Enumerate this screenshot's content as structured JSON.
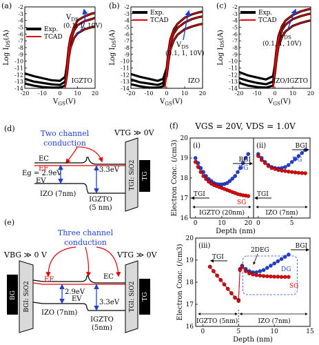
{
  "labels": {
    "a": "(a)",
    "b": "(b)",
    "c": "(c)",
    "d": "(d)",
    "e": "(e)",
    "f": "(f)"
  },
  "colors": {
    "exp": "#000000",
    "tcad": "#e00000",
    "blue": "#1f3fd8",
    "red": "#e00000",
    "gray": "#d9d9d9"
  },
  "chart_data": [
    {
      "type": "line",
      "panel": "a",
      "xlabel": "VGS(V)",
      "ylabel": "Log IDS(A)",
      "xlim": [
        -20,
        20
      ],
      "ylim": [
        -14,
        -2
      ],
      "xticks": [
        "-20",
        "-10",
        "0",
        "10",
        "20"
      ],
      "yticks": [
        "-2",
        "-3",
        "-4",
        "-5",
        "-6",
        "-7",
        "-8",
        "-9",
        "-10",
        "-11",
        "-12",
        "-13",
        "-14"
      ],
      "legend": [
        "Exp.",
        "TCAD"
      ],
      "annotation": {
        "line1": "VDS",
        "line2": "(0.1, 1, 10V)"
      },
      "device": "IGZTO",
      "series": [
        {
          "name": "Exp.",
          "vds": 10,
          "x": [
            -20,
            -15,
            -10,
            -5,
            0,
            3,
            4,
            5,
            6,
            8,
            10,
            14,
            18,
            20
          ],
          "y": [
            -11.8,
            -12.2,
            -12.5,
            -12.8,
            -12.9,
            -12.3,
            -10.5,
            -8,
            -6.5,
            -5,
            -4,
            -3.4,
            -3.0,
            -2.9
          ]
        },
        {
          "name": "Exp.",
          "vds": 1,
          "x": [
            -20,
            -15,
            -10,
            -5,
            0,
            3,
            4,
            5,
            6,
            8,
            10,
            14,
            18,
            20
          ],
          "y": [
            -12.6,
            -13,
            -13.2,
            -13.4,
            -13.5,
            -13,
            -11,
            -8.5,
            -7,
            -5.5,
            -4.7,
            -4.1,
            -3.8,
            -3.6
          ]
        },
        {
          "name": "Exp.",
          "vds": 0.1,
          "x": [
            -20,
            -15,
            -10,
            -5,
            0,
            3,
            4,
            5,
            6,
            8,
            10,
            14,
            18,
            20
          ],
          "y": [
            -13.3,
            -13.6,
            -13.8,
            -13.9,
            -13.9,
            -13.6,
            -12,
            -9.5,
            -8,
            -6.6,
            -5.9,
            -5.3,
            -5.0,
            -4.9
          ]
        },
        {
          "name": "TCAD",
          "vds": 10,
          "x": [
            3,
            4,
            5,
            6,
            8,
            10,
            14,
            18,
            20
          ],
          "y": [
            -13.8,
            -10.5,
            -8,
            -6.5,
            -5,
            -4,
            -3.4,
            -3.0,
            -2.9
          ]
        },
        {
          "name": "TCAD",
          "vds": 1,
          "x": [
            3,
            4,
            5,
            6,
            8,
            10,
            14,
            18,
            20
          ],
          "y": [
            -13.9,
            -11,
            -8.5,
            -7,
            -5.5,
            -4.7,
            -4.1,
            -3.8,
            -3.6
          ]
        },
        {
          "name": "TCAD",
          "vds": 0.1,
          "x": [
            3,
            4,
            5,
            6,
            8,
            10,
            14,
            18,
            20
          ],
          "y": [
            -14,
            -12,
            -9.5,
            -8,
            -6.6,
            -5.9,
            -5.3,
            -5.0,
            -4.9
          ]
        }
      ]
    },
    {
      "type": "line",
      "panel": "b",
      "xlabel": "VGS(V)",
      "ylabel": "Log IDS(A)",
      "xlim": [
        -20,
        20
      ],
      "ylim": [
        -14,
        -2
      ],
      "xticks": [
        "-20",
        "-10",
        "0",
        "10",
        "20"
      ],
      "yticks": [
        "-2",
        "-3",
        "-4",
        "-5",
        "-6",
        "-7",
        "-8",
        "-9",
        "-10",
        "-11",
        "-12",
        "-13",
        "-14"
      ],
      "legend": [
        "Exp.",
        "TCAD"
      ],
      "annotation": {
        "line1": "VDS",
        "line2": "(0.1, 1, 10V)"
      },
      "device": "IZO",
      "series": [
        {
          "name": "Exp.",
          "vds": 10,
          "x": [
            -20,
            -15,
            -10,
            -5,
            -2,
            0,
            1,
            2,
            4,
            6,
            10,
            14,
            18,
            20
          ],
          "y": [
            -11.9,
            -12.3,
            -12.6,
            -12.9,
            -12.6,
            -11,
            -8.5,
            -6.8,
            -5.3,
            -4.5,
            -3.6,
            -3.1,
            -2.8,
            -2.7
          ]
        },
        {
          "name": "Exp.",
          "vds": 1,
          "x": [
            -20,
            -15,
            -10,
            -5,
            -2,
            0,
            1,
            2,
            4,
            6,
            10,
            14,
            18,
            20
          ],
          "y": [
            -12.7,
            -13.1,
            -13.3,
            -13.5,
            -13.2,
            -11.5,
            -9,
            -7.3,
            -5.9,
            -5.1,
            -4.3,
            -3.8,
            -3.5,
            -3.4
          ]
        },
        {
          "name": "Exp.",
          "vds": 0.1,
          "x": [
            -20,
            -15,
            -10,
            -5,
            -2,
            0,
            1,
            2,
            4,
            6,
            10,
            14,
            18,
            20
          ],
          "y": [
            -13.4,
            -13.7,
            -13.9,
            -13.9,
            -13.7,
            -12.2,
            -10,
            -8.3,
            -6.9,
            -6.1,
            -5.3,
            -4.9,
            -4.6,
            -4.5
          ]
        },
        {
          "name": "TCAD",
          "vds": 10,
          "x": [
            -1,
            0,
            1,
            2,
            4,
            6,
            10,
            14,
            18,
            20
          ],
          "y": [
            -13.8,
            -11,
            -8.5,
            -6.8,
            -5.3,
            -4.5,
            -3.6,
            -3.1,
            -2.8,
            -2.7
          ]
        },
        {
          "name": "TCAD",
          "vds": 1,
          "x": [
            -1,
            0,
            1,
            2,
            4,
            6,
            10,
            14,
            18,
            20
          ],
          "y": [
            -13.9,
            -11.5,
            -9,
            -7.3,
            -5.9,
            -5.1,
            -4.3,
            -3.8,
            -3.5,
            -3.4
          ]
        },
        {
          "name": "TCAD",
          "vds": 0.1,
          "x": [
            -1,
            0,
            1,
            2,
            4,
            6,
            10,
            14,
            18,
            20
          ],
          "y": [
            -14,
            -12.2,
            -10,
            -8.3,
            -6.9,
            -6.1,
            -5.3,
            -4.9,
            -4.6,
            -4.5
          ]
        }
      ]
    },
    {
      "type": "line",
      "panel": "c",
      "xlabel": "VGS(V)",
      "ylabel": "Log IDS(A)",
      "xlim": [
        -20,
        20
      ],
      "ylim": [
        -14,
        -2
      ],
      "xticks": [
        "-20",
        "-10",
        "0",
        "10",
        "20"
      ],
      "yticks": [
        "-2",
        "-3",
        "-4",
        "-5",
        "-6",
        "-7",
        "-8",
        "-9",
        "-10",
        "-11",
        "-12",
        "-13",
        "-14"
      ],
      "legend": [
        "Exp.",
        "TCAD"
      ],
      "annotation": {
        "line1": "VDS",
        "line2": "(0.1, 1, 10V)"
      },
      "device": "IZO/IGZTO",
      "series": [
        {
          "name": "Exp.",
          "vds": 10,
          "x": [
            -20,
            -15,
            -10,
            -5,
            -1,
            0,
            1,
            2,
            4,
            6,
            10,
            14,
            18,
            20
          ],
          "y": [
            -11.6,
            -12.1,
            -12.4,
            -12.7,
            -12.2,
            -10.5,
            -8,
            -6.3,
            -4.8,
            -4,
            -3.2,
            -2.7,
            -2.4,
            -2.3
          ]
        },
        {
          "name": "Exp.",
          "vds": 1,
          "x": [
            -20,
            -15,
            -10,
            -5,
            -1,
            0,
            1,
            2,
            4,
            6,
            10,
            14,
            18,
            20
          ],
          "y": [
            -12.5,
            -12.9,
            -13.2,
            -13.4,
            -13,
            -11,
            -8.6,
            -6.9,
            -5.4,
            -4.6,
            -3.8,
            -3.4,
            -3.1,
            -3.0
          ]
        },
        {
          "name": "Exp.",
          "vds": 0.1,
          "x": [
            -20,
            -15,
            -10,
            -5,
            -1,
            0,
            1,
            2,
            4,
            6,
            10,
            14,
            18,
            20
          ],
          "y": [
            -13.2,
            -13.6,
            -13.8,
            -13.9,
            -13.6,
            -11.8,
            -9.5,
            -7.8,
            -6.4,
            -5.6,
            -4.8,
            -4.4,
            -4.1,
            -4.0
          ]
        },
        {
          "name": "TCAD",
          "vds": 10,
          "x": [
            -1,
            0,
            1,
            2,
            4,
            6,
            10,
            14,
            18,
            20
          ],
          "y": [
            -13.7,
            -10.5,
            -8,
            -6.3,
            -4.8,
            -4,
            -3.2,
            -2.7,
            -2.4,
            -2.3
          ]
        },
        {
          "name": "TCAD",
          "vds": 1,
          "x": [
            -1,
            0,
            1,
            2,
            4,
            6,
            10,
            14,
            18,
            20
          ],
          "y": [
            -13.9,
            -11,
            -8.6,
            -6.9,
            -5.4,
            -4.6,
            -3.8,
            -3.4,
            -3.1,
            -3.0
          ]
        },
        {
          "name": "TCAD",
          "vds": 0.1,
          "x": [
            -1,
            0,
            1,
            2,
            4,
            6,
            10,
            14,
            18,
            20
          ],
          "y": [
            -14,
            -11.8,
            -9.5,
            -7.8,
            -6.4,
            -5.6,
            -4.8,
            -4.4,
            -4.1,
            -4.0
          ]
        }
      ]
    },
    {
      "type": "scatter",
      "panel": "f(i)",
      "title": "VGS = 20V, VDS = 1.0V",
      "xlabel": "Depth (nm)",
      "ylabel": "Electron Conc. (/cm3)",
      "xlim": [
        -2,
        22
      ],
      "ylim": [
        16,
        20
      ],
      "xticks": [
        "0",
        "10",
        "20"
      ],
      "yticks": [
        "16",
        "17",
        "18",
        "19",
        "20"
      ],
      "sublabel": "(i)",
      "region": "IGZTO (20nm)",
      "left_arrow": "TGI",
      "right_arrow": "BGI",
      "series": [
        {
          "name": "DG",
          "x": [
            0,
            1,
            2,
            3,
            4,
            5,
            6,
            7,
            8,
            9,
            10,
            11,
            12,
            13,
            14,
            15,
            16,
            17,
            18,
            19,
            20
          ],
          "y": [
            19.0,
            18.75,
            18.5,
            18.3,
            18.1,
            17.95,
            17.85,
            17.75,
            17.7,
            17.68,
            17.68,
            17.7,
            17.75,
            17.85,
            17.97,
            18.1,
            18.3,
            18.5,
            18.75,
            19.0,
            19.2
          ]
        },
        {
          "name": "SG",
          "x": [
            0,
            1,
            2,
            3,
            4,
            5,
            6,
            7,
            8,
            9,
            10,
            11,
            12,
            13,
            14,
            15,
            16,
            17,
            18,
            19,
            20
          ],
          "y": [
            18.8,
            18.55,
            18.3,
            18.1,
            17.95,
            17.82,
            17.72,
            17.65,
            17.6,
            17.55,
            17.5,
            17.45,
            17.4,
            17.35,
            17.3,
            17.25,
            17.2,
            17.17,
            17.14,
            17.12,
            17.1
          ]
        }
      ]
    },
    {
      "type": "scatter",
      "panel": "f(ii)",
      "xlabel": "Depth (nm)",
      "xlim": [
        -0.7,
        7.7
      ],
      "ylim": [
        16,
        20
      ],
      "xticks": [
        "0",
        "5"
      ],
      "sublabel": "(ii)",
      "region": "IZO (7nm)",
      "left_arrow": "TGI",
      "right_arrow": "BGI",
      "series": [
        {
          "name": "DG",
          "x": [
            0,
            0.5,
            1,
            1.5,
            2,
            2.5,
            3,
            3.5,
            4,
            4.5,
            5,
            5.5,
            6,
            6.5,
            7
          ],
          "y": [
            19.2,
            19.0,
            18.8,
            18.65,
            18.55,
            18.5,
            18.48,
            18.5,
            18.55,
            18.65,
            18.8,
            18.95,
            19.1,
            19.25,
            19.4
          ]
        },
        {
          "name": "SG",
          "x": [
            0,
            0.5,
            1,
            1.5,
            2,
            2.5,
            3,
            3.5,
            4,
            4.5,
            5,
            5.5,
            6,
            6.5,
            7
          ],
          "y": [
            19.1,
            18.9,
            18.75,
            18.6,
            18.5,
            18.45,
            18.4,
            18.37,
            18.35,
            18.32,
            18.3,
            18.28,
            18.26,
            18.25,
            18.24
          ]
        }
      ]
    },
    {
      "type": "scatter",
      "panel": "f(iii)",
      "xlabel": "Depth (nm)",
      "ylabel": "Electron Conc. (/cm3)",
      "xlim": [
        -1,
        15
      ],
      "ylim": [
        16,
        20
      ],
      "xticks": [
        "0",
        "5",
        "10",
        "15"
      ],
      "yticks": [
        "16",
        "17",
        "18",
        "19",
        "20"
      ],
      "sublabel": "(iii)",
      "region_left": "IGZTO (5nm)",
      "region_right": "IZO (7nm)",
      "left_arrow": "TGI",
      "right_arrow": "BGI",
      "annotation": "2DEG",
      "series": [
        {
          "name": "DG",
          "x": [
            1,
            1.5,
            2,
            2.5,
            3,
            3.5,
            4,
            4.5,
            5,
            5.2,
            5.5,
            6,
            6.5,
            7,
            7.5,
            8,
            8.5,
            9,
            9.5,
            10,
            10.5,
            11,
            11.5,
            12
          ],
          "y": [
            18.7,
            18.5,
            18.3,
            18.1,
            17.9,
            17.7,
            17.5,
            17.3,
            17.2,
            18.6,
            18.75,
            18.6,
            18.5,
            18.45,
            18.45,
            18.5,
            18.55,
            18.65,
            18.75,
            18.85,
            18.95,
            19.05,
            19.15,
            19.25
          ]
        },
        {
          "name": "SG",
          "x": [
            1,
            1.5,
            2,
            2.5,
            3,
            3.5,
            4,
            4.5,
            5,
            5.2,
            5.5,
            6,
            6.5,
            7,
            7.5,
            8,
            8.5,
            9,
            9.5,
            10,
            10.5,
            11,
            11.5,
            12
          ],
          "y": [
            18.7,
            18.5,
            18.3,
            18.1,
            17.9,
            17.7,
            17.5,
            17.3,
            17.15,
            18.55,
            18.7,
            18.5,
            18.4,
            18.35,
            18.32,
            18.3,
            18.28,
            18.27,
            18.26,
            18.25,
            18.25,
            18.24,
            18.24,
            18.24
          ]
        }
      ]
    }
  ],
  "diagram_d": {
    "title_lines": [
      "Two channel",
      "conduction"
    ],
    "vtg": "VTG ≫ 0V",
    "ec": "EC",
    "ef": "EF",
    "ev": "EV",
    "eg": "Eg = 2.9eV",
    "gap": "3.3eV",
    "izo": "IZO (7nm)",
    "igzto": [
      "IGZTO",
      "(5 nm)"
    ],
    "tgi": "TGI: SiO2",
    "tg": "TG"
  },
  "diagram_e": {
    "title_lines": [
      "Three channel",
      "conduction"
    ],
    "vbg": "VBG ≫ 0 V",
    "vtg": "VTG ≫ 0V",
    "ec": "EC",
    "ef": "EF",
    "ev": "EV",
    "gap_left": "2.9eV",
    "gap_right": "3.3eV",
    "izo": "IZO (7nm)",
    "igzto": [
      "IGZTO",
      "(5nm)"
    ],
    "bg": "BG",
    "bgi": "BGI: SiO2",
    "tgi": "TGI: SiO2",
    "tg": "TG"
  }
}
